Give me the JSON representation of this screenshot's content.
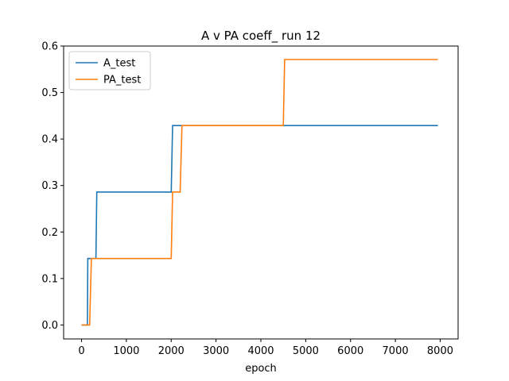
{
  "chart_data": {
    "type": "line",
    "title": "A v PA coeff_ run 12",
    "xlabel": "epoch",
    "ylabel": "",
    "xlim": [
      -400,
      8400
    ],
    "ylim": [
      -0.03,
      0.6
    ],
    "xticks": [
      0,
      1000,
      2000,
      3000,
      4000,
      5000,
      6000,
      7000,
      8000
    ],
    "yticks": [
      0.0,
      0.1,
      0.2,
      0.3,
      0.4,
      0.5,
      0.6
    ],
    "xtick_labels": [
      "0",
      "1000",
      "2000",
      "3000",
      "4000",
      "5000",
      "6000",
      "7000",
      "8000"
    ],
    "ytick_labels": [
      "0.0",
      "0.1",
      "0.2",
      "0.3",
      "0.4",
      "0.5",
      "0.6"
    ],
    "grid": false,
    "legend": "top-left",
    "series": [
      {
        "name": "A_test",
        "color": "#1f77b4",
        "x": [
          0,
          130,
          140,
          320,
          340,
          2000,
          2030,
          7950
        ],
        "y": [
          0.0,
          0.0,
          0.143,
          0.143,
          0.286,
          0.286,
          0.429,
          0.429
        ]
      },
      {
        "name": "PA_test",
        "color": "#ff7f0e",
        "x": [
          0,
          180,
          220,
          2000,
          2030,
          2200,
          2240,
          4500,
          4530,
          7950
        ],
        "y": [
          0.0,
          0.0,
          0.143,
          0.143,
          0.286,
          0.286,
          0.429,
          0.429,
          0.571,
          0.571
        ]
      }
    ]
  }
}
